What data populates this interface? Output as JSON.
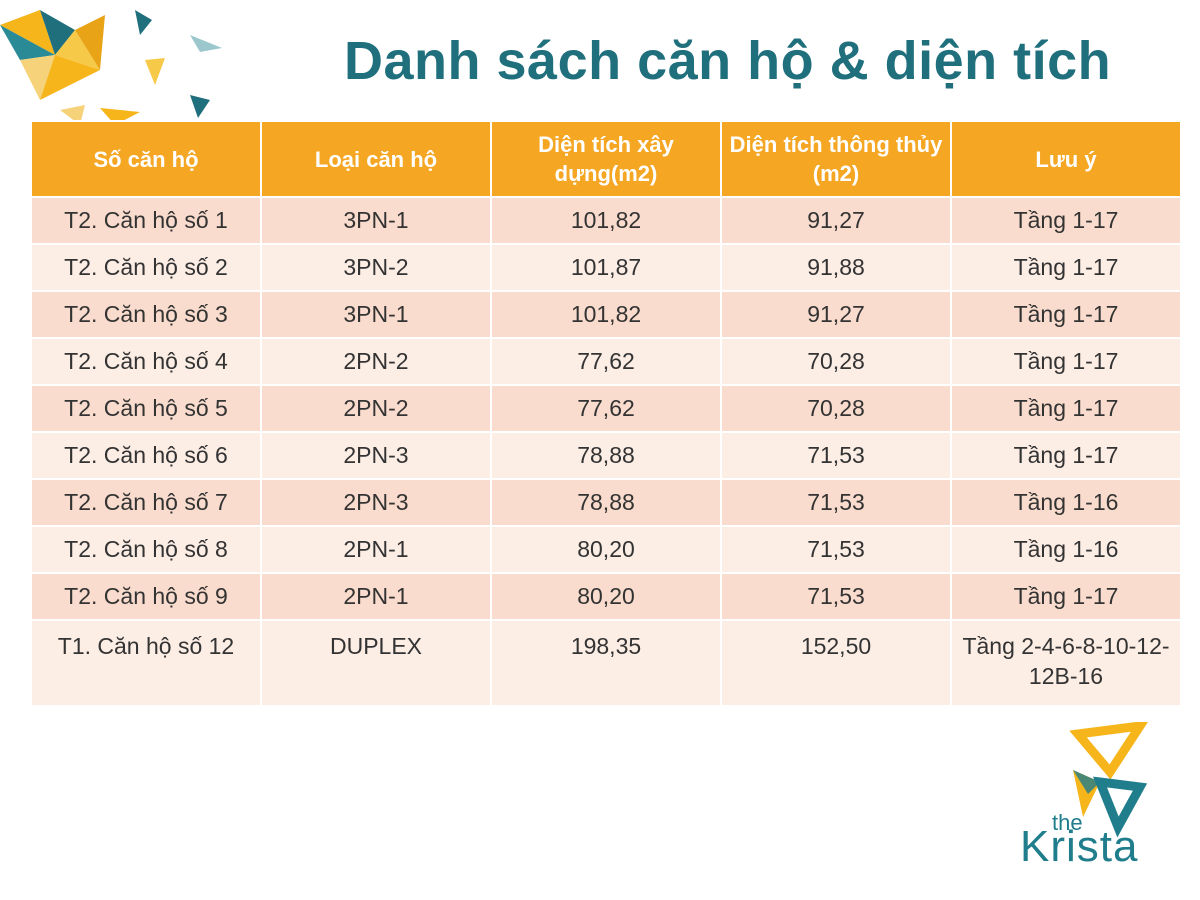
{
  "title": "Danh sách căn hộ & diện tích",
  "table": {
    "headers": [
      "Số căn hộ",
      "Loại căn hộ",
      "Diện tích xây dựng(m2)",
      "Diện tích thông thủy (m2)",
      "Lưu ý"
    ],
    "rows": [
      [
        "T2. Căn hộ số 1",
        "3PN-1",
        "101,82",
        "91,27",
        "Tầng 1-17"
      ],
      [
        "T2. Căn hộ số 2",
        "3PN-2",
        "101,87",
        "91,88",
        "Tầng 1-17"
      ],
      [
        "T2. Căn hộ số 3",
        "3PN-1",
        "101,82",
        "91,27",
        "Tầng 1-17"
      ],
      [
        "T2. Căn hộ số 4",
        "2PN-2",
        "77,62",
        "70,28",
        "Tầng 1-17"
      ],
      [
        "T2. Căn hộ số 5",
        "2PN-2",
        "77,62",
        "70,28",
        "Tầng 1-17"
      ],
      [
        "T2. Căn hộ số 6",
        "2PN-3",
        "78,88",
        "71,53",
        "Tầng 1-17"
      ],
      [
        "T2. Căn hộ số 7",
        "2PN-3",
        "78,88",
        "71,53",
        "Tầng 1-16"
      ],
      [
        "T2. Căn hộ số 8",
        "2PN-1",
        "80,20",
        "71,53",
        "Tầng 1-16"
      ],
      [
        "T2. Căn hộ số 9",
        "2PN-1",
        "80,20",
        "71,53",
        "Tầng 1-17"
      ],
      [
        "T1. Căn hộ số 12",
        "DUPLEX",
        "198,35",
        "152,50",
        "Tầng 2-4-6-8-10-12-12B-16"
      ]
    ]
  },
  "logo": {
    "small": "the",
    "large": "Krista"
  },
  "colors": {
    "title": "#1f6f7d",
    "header_bg": "#f5a623",
    "row_odd": "#f9dccd",
    "row_even": "#fcede5",
    "logo_teal": "#1f7d8c",
    "logo_yellow": "#f5b51b"
  },
  "icons": [
    "decorative-triangles-icon",
    "krista-logo-icon"
  ]
}
